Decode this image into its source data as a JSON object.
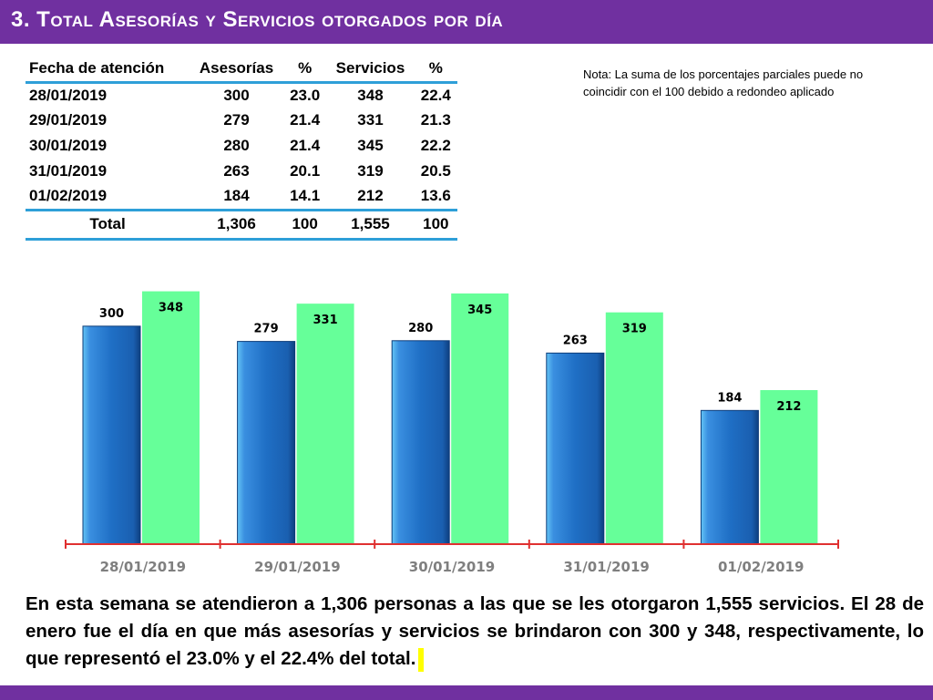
{
  "header": {
    "title": "3.  Total Asesorías y Servicios otorgados por día"
  },
  "table": {
    "columns": [
      "Fecha de atención",
      "Asesorías",
      "%",
      "Servicios",
      "%"
    ],
    "rows": [
      [
        "28/01/2019",
        "300",
        "23.0",
        "348",
        "22.4"
      ],
      [
        "29/01/2019",
        "279",
        "21.4",
        "331",
        "21.3"
      ],
      [
        "30/01/2019",
        "280",
        "21.4",
        "345",
        "22.2"
      ],
      [
        "31/01/2019",
        "263",
        "20.1",
        "319",
        "20.5"
      ],
      [
        "01/02/2019",
        "184",
        "14.1",
        "212",
        "13.6"
      ]
    ],
    "total": [
      "Total",
      "1,306",
      "100",
      "1,555",
      "100"
    ]
  },
  "note": "Nota: La suma de los porcentajes parciales puede no coincidir con el 100 debido a redondeo aplicado",
  "chart_data": {
    "type": "bar",
    "categories": [
      "28/01/2019",
      "29/01/2019",
      "30/01/2019",
      "31/01/2019",
      "01/02/2019"
    ],
    "series": [
      {
        "name": "Asesorías",
        "values": [
          300,
          279,
          280,
          263,
          184
        ],
        "color": "#1f6fc5"
      },
      {
        "name": "Servicios",
        "values": [
          348,
          331,
          345,
          319,
          212
        ],
        "color": "#66ff99"
      }
    ],
    "ylim": [
      0,
      350
    ],
    "axis_color": "#e03030",
    "tick_label_color": "#7f7f7f"
  },
  "summary": "En esta semana se atendieron a 1,306 personas a las que se les otorgaron 1,555 servicios. El 28 de enero fue el día en que más asesorías y servicios se brindaron con 300 y 348, respectivamente, lo que representó  el 23.0% y el 22.4% del total."
}
